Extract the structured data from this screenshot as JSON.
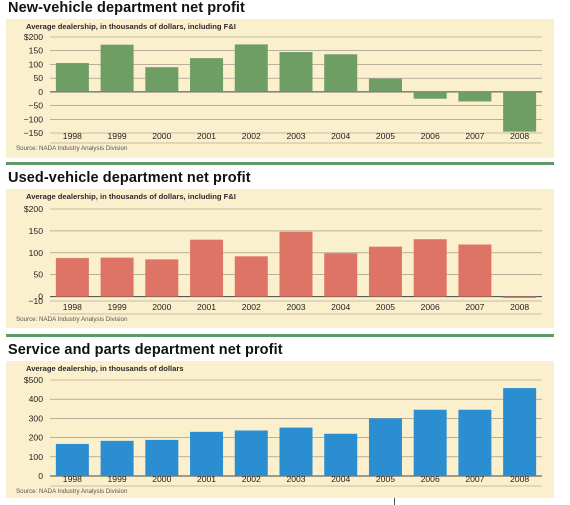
{
  "colors": {
    "background": "#fbf0cd",
    "separator": "#5e9a66"
  },
  "chart_data": [
    {
      "type": "bar",
      "title": "New-vehicle department net profit",
      "subtitle": "Average dealership, in thousands of dollars, including F&I",
      "source": "Source: NADA Industry Analysis Division",
      "color": "#6e9e64",
      "categories": [
        "1998",
        "1999",
        "2000",
        "2001",
        "2002",
        "2003",
        "2004",
        "2005",
        "2006",
        "2007",
        "2008"
      ],
      "values": [
        105,
        172,
        90,
        123,
        173,
        145,
        137,
        48,
        -25,
        -35,
        -145
      ],
      "ylim": [
        -150,
        200
      ],
      "yticks": [
        {
          "v": 200,
          "label": "$200"
        },
        {
          "v": 150,
          "label": "150"
        },
        {
          "v": 100,
          "label": "100"
        },
        {
          "v": 50,
          "label": "50"
        },
        {
          "v": 0,
          "label": "0"
        },
        {
          "v": -50,
          "label": "−50"
        },
        {
          "v": -100,
          "label": "−100"
        },
        {
          "v": -150,
          "label": "−150"
        }
      ],
      "grid": true
    },
    {
      "type": "bar",
      "title": "Used-vehicle department net profit",
      "subtitle": "Average dealership, in thousands of dollars, including F&I",
      "source": "Source: NADA Industry Analysis Division",
      "color": "#dd7466",
      "categories": [
        "1998",
        "1999",
        "2000",
        "2001",
        "2002",
        "2003",
        "2004",
        "2005",
        "2006",
        "2007",
        "2008"
      ],
      "values": [
        88,
        89,
        85,
        130,
        92,
        148,
        99,
        114,
        131,
        119,
        -3
      ],
      "ylim": [
        -10,
        200
      ],
      "yticks": [
        {
          "v": 200,
          "label": "$200"
        },
        {
          "v": 150,
          "label": "150"
        },
        {
          "v": 100,
          "label": "100"
        },
        {
          "v": 50,
          "label": "50"
        },
        {
          "v": 0,
          "label": "0"
        },
        {
          "v": -10,
          "label": "−10"
        }
      ],
      "grid": true
    },
    {
      "type": "bar",
      "title": "Service and parts department net profit",
      "subtitle": "Average dealership, in thousands of dollars",
      "source": "Source: NADA Industry Analysis Division",
      "color": "#2a8ed1",
      "categories": [
        "1998",
        "1999",
        "2000",
        "2001",
        "2002",
        "2003",
        "2004",
        "2005",
        "2006",
        "2007",
        "2008"
      ],
      "values": [
        167,
        183,
        188,
        230,
        237,
        252,
        220,
        300,
        345,
        345,
        458
      ],
      "ylim": [
        0,
        500
      ],
      "yticks": [
        {
          "v": 500,
          "label": "$500"
        },
        {
          "v": 400,
          "label": "400"
        },
        {
          "v": 300,
          "label": "300"
        },
        {
          "v": 200,
          "label": "200"
        },
        {
          "v": 100,
          "label": "100"
        },
        {
          "v": 0,
          "label": "0"
        }
      ],
      "grid": true
    }
  ]
}
